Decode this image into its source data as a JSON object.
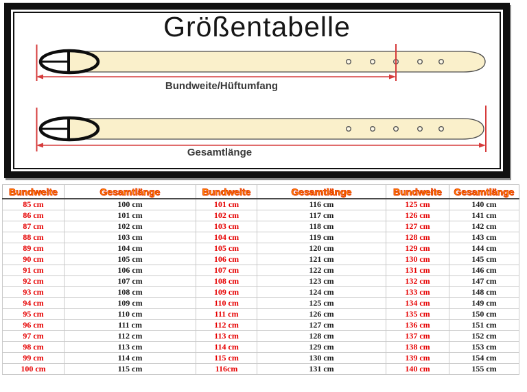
{
  "diagram": {
    "title": "Größentabelle",
    "belt1_label": "Bundweite/Hüftumfang",
    "belt2_label": "Gesamtlänge",
    "colors": {
      "belt_fill": "#faf0cb",
      "belt_outline": "#4a4a4a",
      "buckle_black": "#0d0d0d",
      "measure_red": "#d63b3b",
      "frame_black": "#101010"
    }
  },
  "table": {
    "headers": [
      "Bundweite",
      "Gesamtlänge",
      "Bundweite",
      "Gesamtlänge",
      "Bundweite",
      "Gesamtlänge"
    ],
    "header_color": "#ff8400",
    "bundweite_color": "#e60000",
    "gesamt_color": "#1a1a1a",
    "rows": [
      [
        "85 cm",
        "100 cm",
        "101 cm",
        "116 cm",
        "125 cm",
        "140 cm"
      ],
      [
        "86 cm",
        "101 cm",
        "102 cm",
        "117 cm",
        "126 cm",
        "141 cm"
      ],
      [
        "87 cm",
        "102 cm",
        "103 cm",
        "118 cm",
        "127 cm",
        "142 cm"
      ],
      [
        "88 cm",
        "103 cm",
        "104 cm",
        "119 cm",
        "128 cm",
        "143 cm"
      ],
      [
        "89 cm",
        "104 cm",
        "105 cm",
        "120 cm",
        "129 cm",
        "144 cm"
      ],
      [
        "90 cm",
        "105 cm",
        "106 cm",
        "121 cm",
        "130 cm",
        "145 cm"
      ],
      [
        "91 cm",
        "106 cm",
        "107 cm",
        "122 cm",
        "131 cm",
        "146 cm"
      ],
      [
        "92 cm",
        "107 cm",
        "108 cm",
        "123 cm",
        "132 cm",
        "147 cm"
      ],
      [
        "93 cm",
        "108 cm",
        "109 cm",
        "124 cm",
        "133 cm",
        "148 cm"
      ],
      [
        "94 cm",
        "109 cm",
        "110 cm",
        "125 cm",
        "134 cm",
        "149 cm"
      ],
      [
        "95 cm",
        "110 cm",
        "111 cm",
        "126 cm",
        "135 cm",
        "150 cm"
      ],
      [
        "96 cm",
        "111 cm",
        "112 cm",
        "127 cm",
        "136 cm",
        "151 cm"
      ],
      [
        "97 cm",
        "112 cm",
        "113 cm",
        "128 cm",
        "137 cm",
        "152 cm"
      ],
      [
        "98 cm",
        "113 cm",
        "114 cm",
        "129 cm",
        "138 cm",
        "153 cm"
      ],
      [
        "99 cm",
        "114 cm",
        "115 cm",
        "130 cm",
        "139 cm",
        "154 cm"
      ],
      [
        "100 cm",
        "115 cm",
        "116cm",
        "131 cm",
        "140 cm",
        "155 cm"
      ]
    ]
  }
}
